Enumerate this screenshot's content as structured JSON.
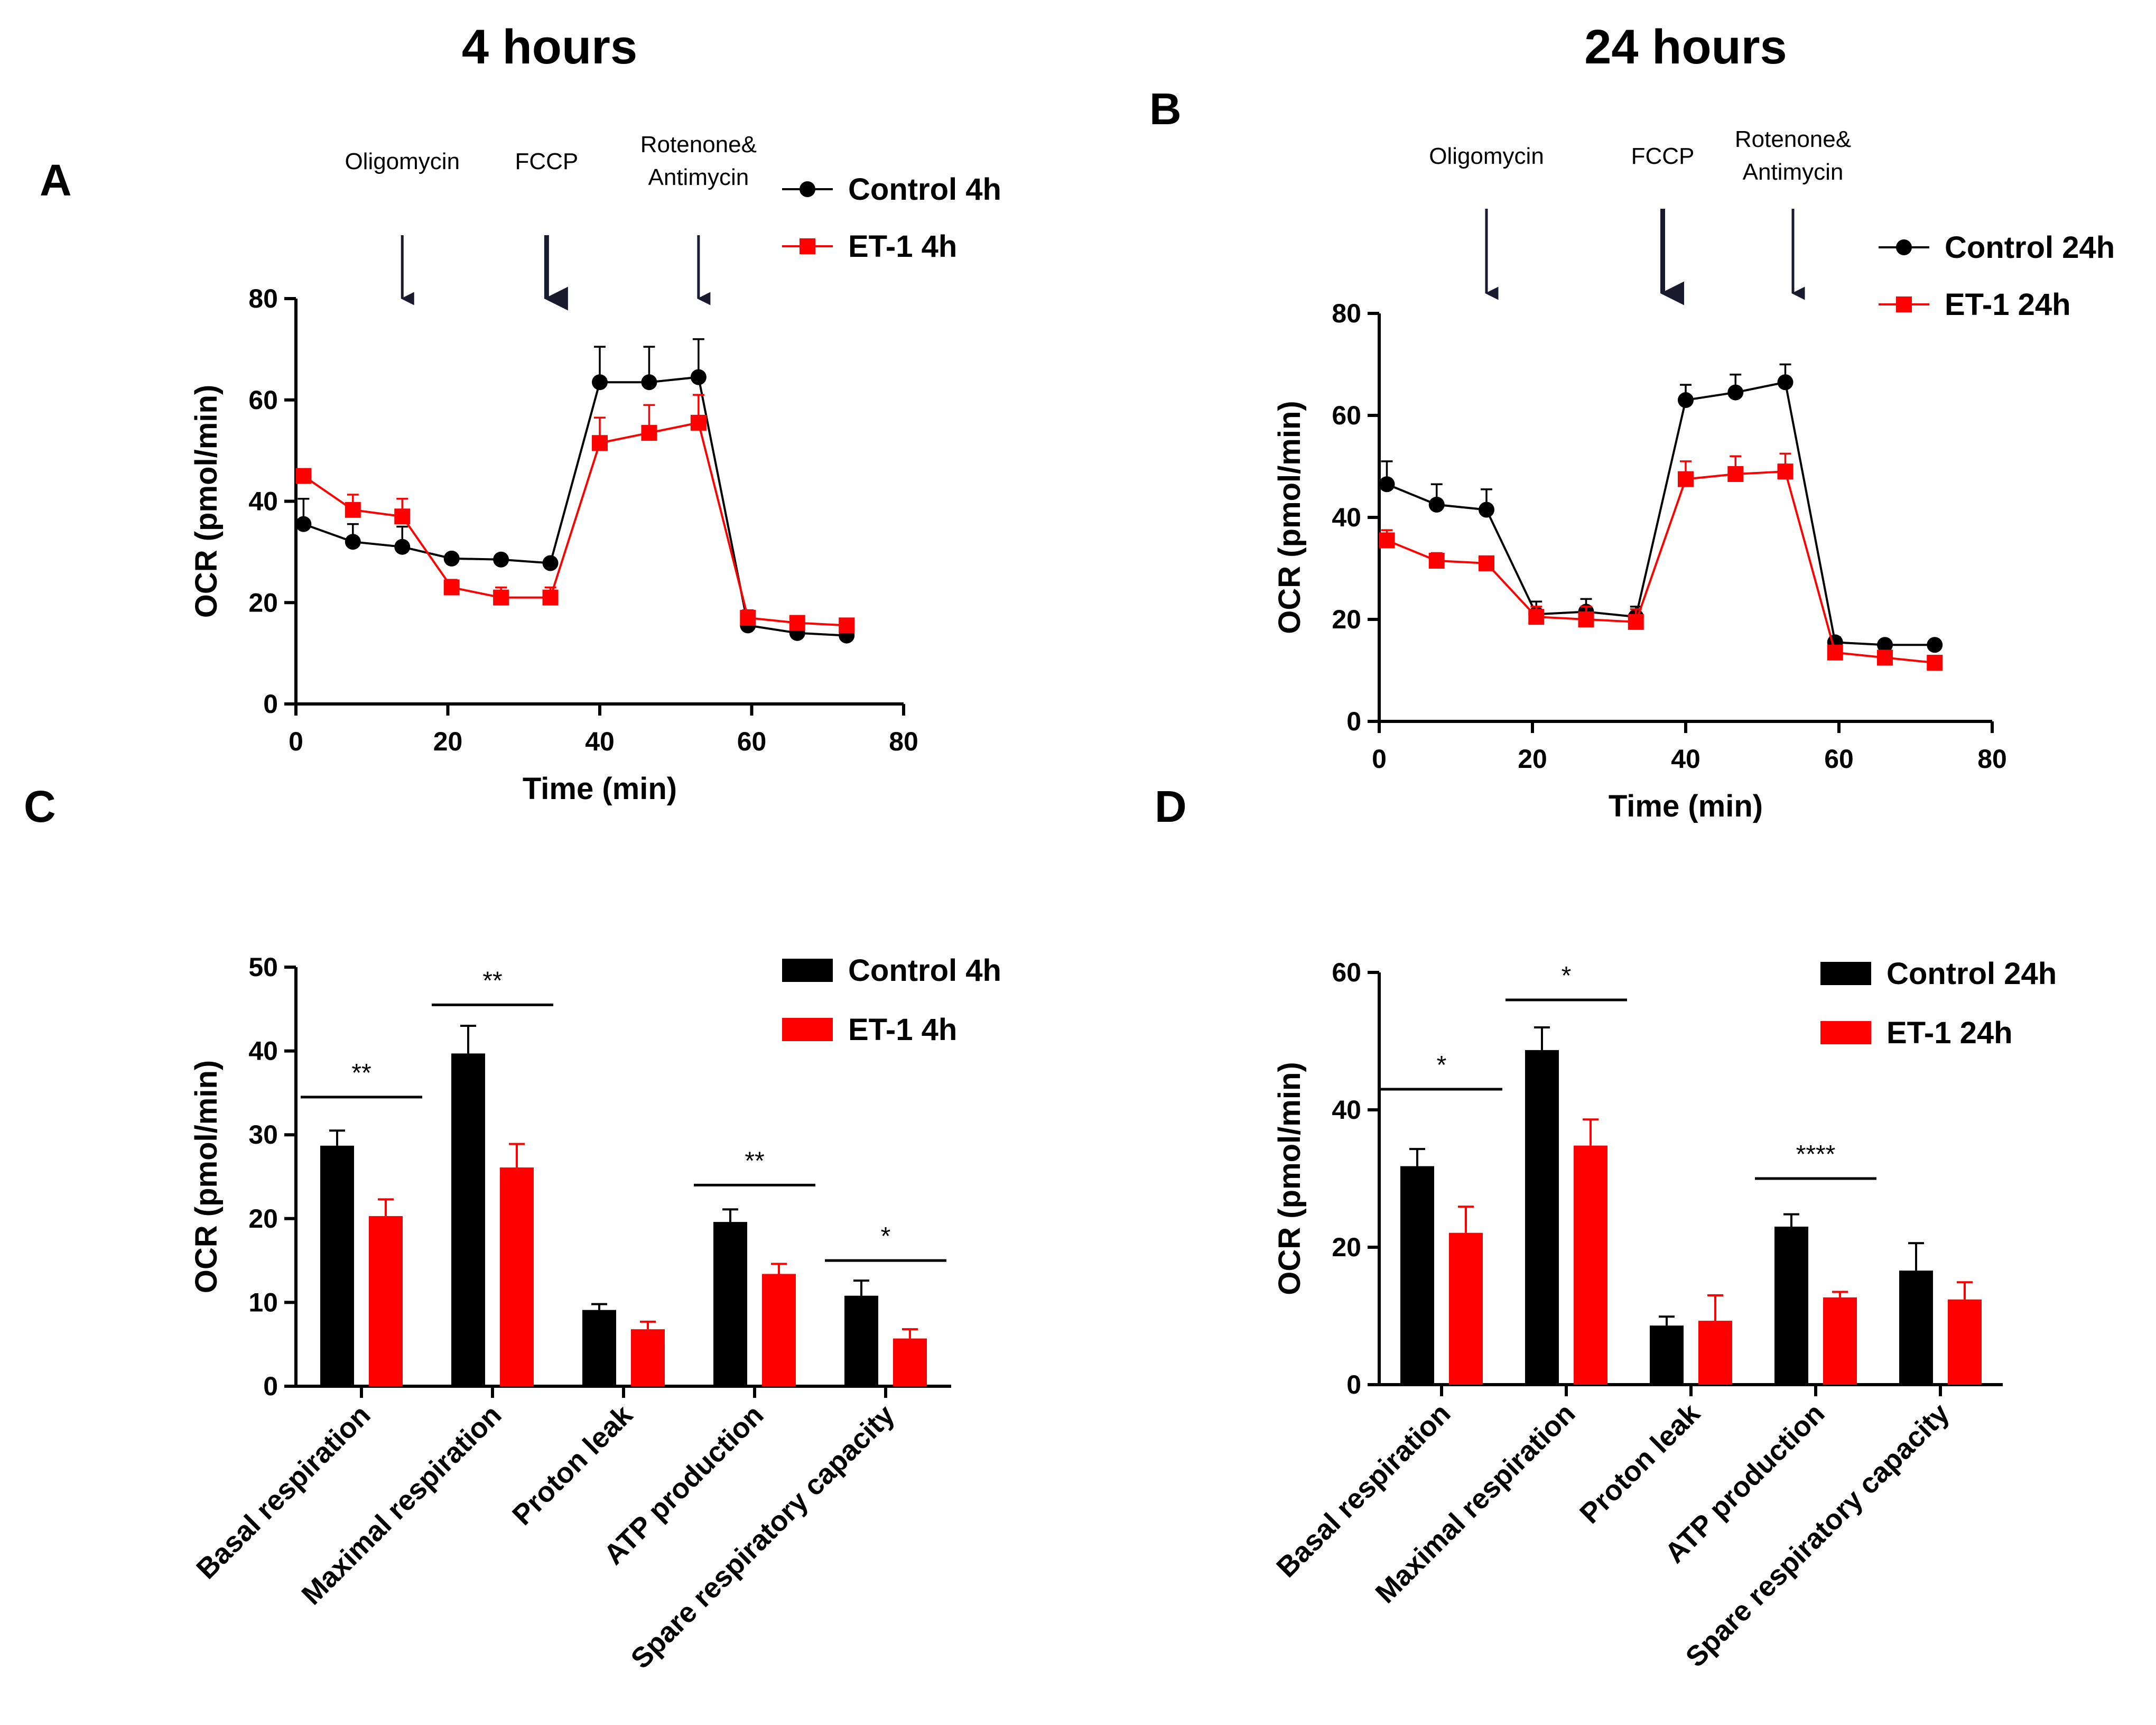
{
  "headers": {
    "left": "4 hours",
    "right": "24 hours"
  },
  "panel_labels": {
    "a": "A",
    "b": "B",
    "c": "C",
    "d": "D"
  },
  "colors": {
    "control": "#000000",
    "et1": "#ff0000",
    "arrow": "#1a1a2e"
  },
  "chart_data": [
    {
      "id": "A",
      "type": "line",
      "xlabel": "Time (min)",
      "ylabel": "OCR (pmol/min)",
      "xlim": [
        0,
        80
      ],
      "ylim": [
        0,
        80
      ],
      "xticks": [
        "0",
        "20",
        "40",
        "60",
        "80"
      ],
      "yticks": [
        "0",
        "20",
        "40",
        "60",
        "80"
      ],
      "annotations": [
        {
          "text": "Oligomycin",
          "x": 14
        },
        {
          "text": "FCCP",
          "x": 33
        },
        {
          "text": "Rotenone&",
          "text2": "Antimycin",
          "x": 53
        }
      ],
      "series": [
        {
          "name": "Control 4h",
          "marker": "circle",
          "x": [
            1,
            7.5,
            14,
            20.5,
            27,
            33.5,
            40,
            46.5,
            53,
            59.5,
            66,
            72.5
          ],
          "y": [
            35.5,
            32,
            31,
            28.7,
            28.5,
            27.8,
            63.5,
            63.5,
            64.5,
            15.5,
            14,
            13.5
          ],
          "err": [
            5,
            3.5,
            4,
            0.8,
            0.8,
            0.8,
            7,
            7,
            7.5,
            1,
            0.8,
            0.8
          ]
        },
        {
          "name": "ET-1 4h",
          "marker": "square",
          "x": [
            1,
            7.5,
            14,
            20.5,
            27,
            33.5,
            40,
            46.5,
            53,
            59.5,
            66,
            72.5
          ],
          "y": [
            45,
            38.3,
            37,
            23,
            21,
            21,
            51.5,
            53.5,
            55.5,
            17,
            16,
            15.5
          ],
          "err": [
            1,
            3,
            3.5,
            1.5,
            2,
            2,
            5,
            5.5,
            5.5,
            1.5,
            1,
            1
          ]
        }
      ]
    },
    {
      "id": "B",
      "type": "line",
      "xlabel": "Time (min)",
      "ylabel": "OCR (pmol/min)",
      "xlim": [
        0,
        80
      ],
      "ylim": [
        0,
        80
      ],
      "xticks": [
        "0",
        "20",
        "40",
        "60",
        "80"
      ],
      "yticks": [
        "0",
        "20",
        "40",
        "60",
        "80"
      ],
      "annotations": [
        {
          "text": "Oligomycin",
          "x": 14
        },
        {
          "text": "FCCP",
          "x": 37
        },
        {
          "text": "Rotenone&",
          "text2": "Antimycin",
          "x": 54
        }
      ],
      "series": [
        {
          "name": "Control 24h",
          "marker": "circle",
          "x": [
            1,
            7.5,
            14,
            20.5,
            27,
            33.5,
            40,
            46.5,
            53,
            59.5,
            66,
            72.5
          ],
          "y": [
            46.5,
            42.5,
            41.5,
            21,
            21.5,
            20.5,
            63,
            64.5,
            66.5,
            15.5,
            15,
            15
          ],
          "err": [
            4.5,
            4,
            4,
            2.5,
            2.5,
            2,
            3,
            3.5,
            3.5,
            1,
            0.8,
            0.8
          ]
        },
        {
          "name": "ET-1 24h",
          "marker": "square",
          "x": [
            1,
            7.5,
            14,
            20.5,
            27,
            33.5,
            40,
            46.5,
            53,
            59.5,
            66,
            72.5
          ],
          "y": [
            35.5,
            31.5,
            31,
            20.5,
            20,
            19.5,
            47.5,
            48.5,
            49,
            13.5,
            12.5,
            11.5
          ],
          "err": [
            2,
            1.5,
            1,
            2,
            2.5,
            2.5,
            3.5,
            3.5,
            3.5,
            1,
            0.8,
            0.8
          ]
        }
      ]
    },
    {
      "id": "C",
      "type": "bar",
      "ylabel": "OCR (pmol/min)",
      "ylim": [
        0,
        50
      ],
      "yticks": [
        "0",
        "10",
        "20",
        "30",
        "40",
        "50"
      ],
      "categories": [
        "Basal respiration",
        "Maximal respiration",
        "Proton leak",
        "ATP production",
        "Spare respiratory capacity"
      ],
      "significance": [
        "**",
        "**",
        "",
        "**",
        "*"
      ],
      "sig_y": [
        34.5,
        45.5,
        0,
        24,
        15
      ],
      "series": [
        {
          "name": "Control 4h",
          "values": [
            28.7,
            39.7,
            9.1,
            19.6,
            10.8
          ],
          "err": [
            1.8,
            3.3,
            0.7,
            1.5,
            1.8
          ]
        },
        {
          "name": "ET-1 4h",
          "values": [
            20.3,
            26.1,
            6.8,
            13.4,
            5.7
          ],
          "err": [
            2.0,
            2.8,
            0.9,
            1.2,
            1.1
          ]
        }
      ]
    },
    {
      "id": "D",
      "type": "bar",
      "ylabel": "OCR (pmol/min)",
      "ylim": [
        0,
        60
      ],
      "yticks": [
        "0",
        "20",
        "40",
        "60"
      ],
      "categories": [
        "Basal respiration",
        "Maximal respiration",
        "Proton leak",
        "ATP production",
        "Spare respiratory capacity"
      ],
      "significance": [
        "*",
        "*",
        "",
        "****",
        ""
      ],
      "sig_y": [
        43,
        56,
        0,
        30,
        0
      ],
      "series": [
        {
          "name": "Control 24h",
          "values": [
            31.8,
            48.7,
            8.6,
            23.0,
            16.6
          ],
          "err": [
            2.5,
            3.3,
            1.3,
            1.8,
            4.0
          ]
        },
        {
          "name": "ET-1 24h",
          "values": [
            22.1,
            34.8,
            9.3,
            12.7,
            12.4
          ],
          "err": [
            3.8,
            3.8,
            3.7,
            0.8,
            2.5
          ]
        }
      ]
    }
  ]
}
